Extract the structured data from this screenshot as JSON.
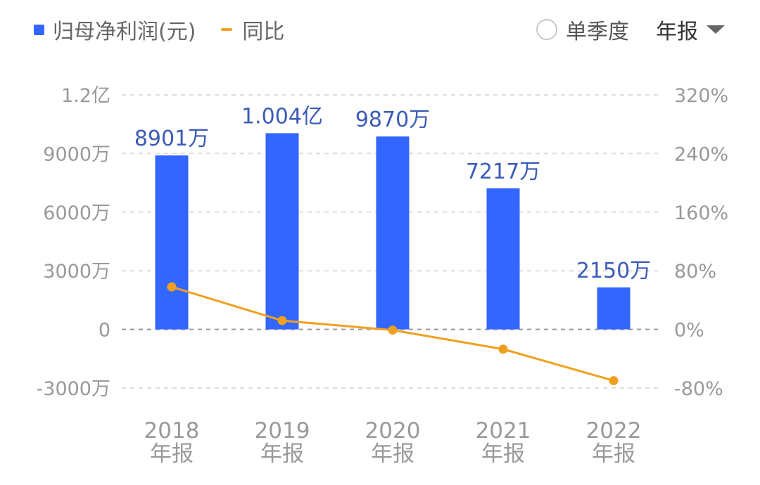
{
  "legend": {
    "bar_label": "归母净利润(元)",
    "line_label": "同比"
  },
  "controls": {
    "quarter_label": "单季度",
    "period_label": "年报"
  },
  "colors": {
    "bar": "#3366ff",
    "line": "#f0a020",
    "grid": "#dddddd",
    "zero_line": "#999999"
  },
  "chart_data": {
    "type": "bar",
    "categories": [
      "2018",
      "2019",
      "2020",
      "2021",
      "2022"
    ],
    "category_sublabel": "年报",
    "series": [
      {
        "name": "归母净利润(元)",
        "type": "bar",
        "axis": "left",
        "unit": "万",
        "values": [
          8901,
          10040,
          9870,
          7217,
          2150
        ],
        "labels": [
          "8901万",
          "1.004亿",
          "9870万",
          "7217万",
          "2150万"
        ]
      },
      {
        "name": "同比",
        "type": "line",
        "axis": "right",
        "unit": "%",
        "values": [
          58,
          12,
          -1,
          -27,
          -70
        ]
      }
    ],
    "y_left": {
      "min": -3000,
      "max": 12000,
      "ticks": [
        12000,
        9000,
        6000,
        3000,
        0,
        -3000
      ],
      "tick_labels": [
        "1.2亿",
        "9000万",
        "6000万",
        "3000万",
        "0",
        "-3000万"
      ]
    },
    "y_right": {
      "min": -80,
      "max": 320,
      "ticks": [
        320,
        240,
        160,
        80,
        0,
        -80
      ],
      "tick_labels": [
        "320%",
        "240%",
        "160%",
        "80%",
        "0%",
        "-80%"
      ]
    },
    "grid": true,
    "legend_position": "top-left"
  }
}
